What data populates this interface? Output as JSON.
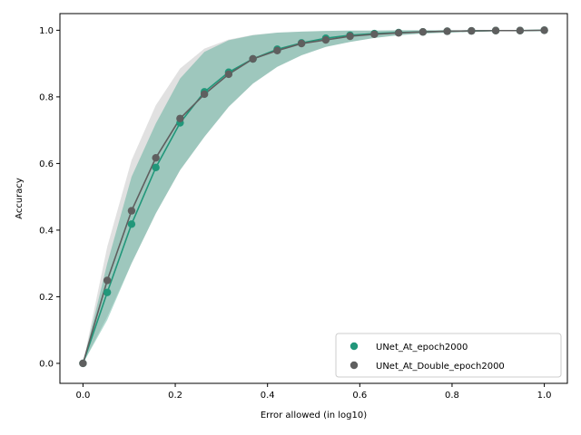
{
  "chart_data": {
    "type": "line",
    "title": "",
    "xlabel": "Error allowed (in log10)",
    "ylabel": "Accuracy",
    "xlim": [
      -0.05,
      1.05
    ],
    "ylim": [
      -0.06,
      1.05
    ],
    "xticks": [
      0.0,
      0.2,
      0.4,
      0.6,
      0.8,
      1.0
    ],
    "xtick_labels": [
      "0.0",
      "0.2",
      "0.4",
      "0.6",
      "0.8",
      "1.0"
    ],
    "yticks": [
      0.0,
      0.2,
      0.4,
      0.6,
      0.8,
      1.0
    ],
    "ytick_labels": [
      "0.0",
      "0.2",
      "0.4",
      "0.6",
      "0.8",
      "1.0"
    ],
    "grid": false,
    "legend_position": "lower-right",
    "x": [
      0.0,
      0.0526,
      0.1053,
      0.1579,
      0.2105,
      0.2632,
      0.3158,
      0.3684,
      0.4211,
      0.4737,
      0.5263,
      0.5789,
      0.6316,
      0.6842,
      0.7368,
      0.7895,
      0.8421,
      0.8947,
      0.9474,
      1.0
    ],
    "series": [
      {
        "name": "UNet_At_epoch2000",
        "color": "#21977a",
        "band_color": "#21977a",
        "values": [
          0.0,
          0.213,
          0.418,
          0.588,
          0.722,
          0.815,
          0.874,
          0.914,
          0.943,
          0.962,
          0.976,
          0.985,
          0.99,
          0.993,
          0.995,
          0.997,
          0.998,
          0.999,
          0.999,
          1.0
        ],
        "lower": [
          0.0,
          0.13,
          0.3,
          0.45,
          0.58,
          0.68,
          0.77,
          0.84,
          0.89,
          0.925,
          0.95,
          0.965,
          0.977,
          0.985,
          0.99,
          0.993,
          0.995,
          0.997,
          0.998,
          0.999
        ],
        "upper": [
          0.0,
          0.3,
          0.56,
          0.72,
          0.855,
          0.935,
          0.97,
          0.985,
          0.993,
          0.996,
          0.998,
          0.999,
          0.999,
          1.0,
          1.0,
          1.0,
          1.0,
          1.0,
          1.0,
          1.0
        ]
      },
      {
        "name": "UNet_At_Double_epoch2000",
        "color": "#5f5f5f",
        "band_color": "#a8a8a8",
        "values": [
          0.0,
          0.249,
          0.458,
          0.617,
          0.735,
          0.808,
          0.868,
          0.914,
          0.939,
          0.96,
          0.971,
          0.982,
          0.988,
          0.992,
          0.995,
          0.997,
          0.998,
          0.999,
          0.999,
          1.0
        ],
        "lower": [
          0.0,
          0.14,
          0.3,
          0.45,
          0.58,
          0.68,
          0.77,
          0.84,
          0.89,
          0.925,
          0.95,
          0.965,
          0.977,
          0.985,
          0.99,
          0.993,
          0.995,
          0.997,
          0.998,
          0.999
        ],
        "upper": [
          0.0,
          0.35,
          0.61,
          0.775,
          0.885,
          0.945,
          0.972,
          0.986,
          0.993,
          0.996,
          0.998,
          0.999,
          0.999,
          1.0,
          1.0,
          1.0,
          1.0,
          1.0,
          1.0,
          1.0
        ]
      }
    ]
  }
}
